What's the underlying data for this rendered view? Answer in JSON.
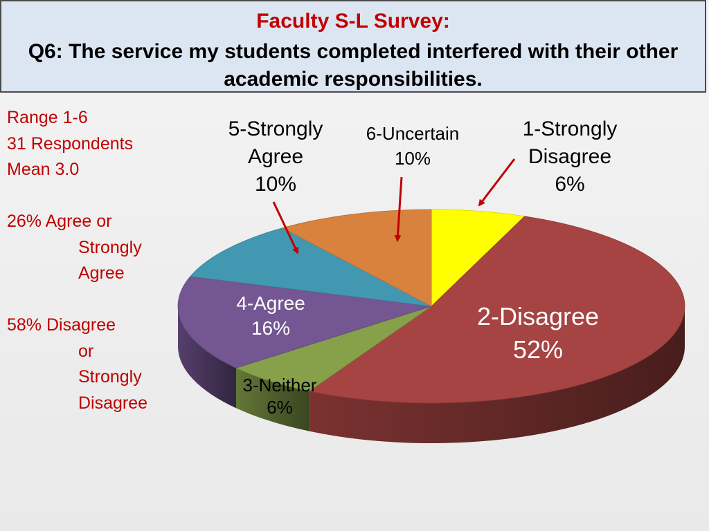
{
  "title": {
    "line1": "Faculty S-L Survey:",
    "line2": "Q6: The service my students completed interfered with their other academic responsibilities."
  },
  "stats": {
    "range": "Range 1-6",
    "respondents": "31 Respondents",
    "mean": "Mean 3.0",
    "agree_line1": "26% Agree or",
    "agree_line2": "Strongly",
    "agree_line3": "Agree",
    "disagree_line1": "58% Disagree",
    "disagree_line2": "or",
    "disagree_line3": "Strongly",
    "disagree_line4": "Disagree"
  },
  "chart_data": {
    "type": "pie",
    "title": "Faculty S-L Survey: Q6: The service my students completed interfered with their other academic responsibilities.",
    "slices": [
      {
        "category": "1-Strongly Disagree",
        "value": 6,
        "label_lines": [
          "1-Strongly",
          "Disagree",
          "6%"
        ],
        "color": "#ffff00"
      },
      {
        "category": "2-Disagree",
        "value": 52,
        "label_lines": [
          "2-Disagree",
          "52%"
        ],
        "color": "#a54442"
      },
      {
        "category": "3-Neither",
        "value": 6,
        "label_lines": [
          "3-Neither",
          "6%"
        ],
        "color": "#86a14a"
      },
      {
        "category": "4-Agree",
        "value": 16,
        "label_lines": [
          "4-Agree",
          "16%"
        ],
        "color": "#735692"
      },
      {
        "category": "5-Strongly Agree",
        "value": 10,
        "label_lines": [
          "5-Strongly",
          "Agree",
          "10%"
        ],
        "color": "#4398b1"
      },
      {
        "category": "6-Uncertain",
        "value": 10,
        "label_lines": [
          "6-Uncertain",
          "10%"
        ],
        "color": "#d8823d"
      }
    ],
    "units": "%",
    "style": "3d-pie",
    "label_color": "#000000",
    "arrow_color": "#c00000"
  }
}
